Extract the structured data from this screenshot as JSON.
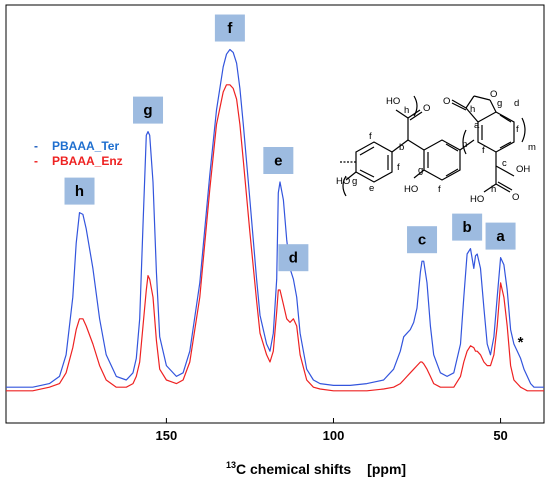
{
  "chart_data": {
    "type": "line",
    "xlabel_sup": "13",
    "xlabel_main": "C chemical shifts",
    "xlabel_unit": "[ppm]",
    "x_reversed": true,
    "xlim": [
      198,
      37
    ],
    "ylim": [
      0,
      1
    ],
    "x_ticks": [
      150,
      100,
      50
    ],
    "x_tick_labels": [
      "150",
      "100",
      "50"
    ],
    "series": [
      {
        "name": "PBAAA_Ter",
        "color": "#3355dd",
        "x": [
          198,
          190,
          185,
          182,
          180,
          178,
          177,
          176,
          175,
          174,
          172,
          170,
          168,
          165,
          162,
          160,
          159,
          158,
          157,
          156,
          155.5,
          155,
          154,
          153,
          152,
          150,
          147,
          145,
          143,
          140,
          137,
          135,
          133,
          132,
          131,
          130,
          129,
          128,
          127,
          125,
          123,
          122,
          120,
          119,
          118,
          117,
          116.5,
          116,
          115,
          114,
          113,
          112,
          111,
          110,
          108,
          106,
          104,
          100,
          95,
          90,
          85,
          82,
          80,
          79,
          78,
          77,
          76,
          75,
          74,
          73.5,
          73,
          72,
          71,
          70,
          68,
          66,
          64,
          62,
          61,
          60,
          59,
          58,
          57.5,
          57,
          56,
          55,
          54,
          53,
          52,
          51,
          50,
          49,
          48,
          47,
          46,
          45,
          44,
          43,
          42,
          41,
          40,
          38,
          37
        ],
        "y": [
          0.03,
          0.03,
          0.04,
          0.06,
          0.12,
          0.28,
          0.43,
          0.515,
          0.51,
          0.47,
          0.36,
          0.22,
          0.12,
          0.06,
          0.05,
          0.07,
          0.11,
          0.22,
          0.48,
          0.73,
          0.74,
          0.73,
          0.6,
          0.35,
          0.17,
          0.09,
          0.06,
          0.07,
          0.13,
          0.32,
          0.62,
          0.8,
          0.92,
          0.955,
          0.968,
          0.96,
          0.93,
          0.86,
          0.76,
          0.55,
          0.33,
          0.23,
          0.15,
          0.13,
          0.18,
          0.33,
          0.57,
          0.6,
          0.55,
          0.44,
          0.36,
          0.33,
          0.28,
          0.18,
          0.08,
          0.05,
          0.04,
          0.035,
          0.035,
          0.04,
          0.05,
          0.08,
          0.13,
          0.17,
          0.18,
          0.19,
          0.21,
          0.25,
          0.35,
          0.38,
          0.38,
          0.32,
          0.2,
          0.12,
          0.07,
          0.06,
          0.07,
          0.15,
          0.28,
          0.4,
          0.415,
          0.36,
          0.395,
          0.4,
          0.36,
          0.25,
          0.15,
          0.12,
          0.17,
          0.28,
          0.39,
          0.37,
          0.3,
          0.19,
          0.15,
          0.13,
          0.11,
          0.08,
          0.06,
          0.04,
          0.03,
          0.03,
          0.03
        ],
        "name_visible": true
      },
      {
        "name": "PBAAA_Enz",
        "color": "#ee2222",
        "x": [
          198,
          190,
          185,
          182,
          180,
          178,
          177,
          176,
          175,
          174,
          172,
          170,
          168,
          165,
          162,
          160,
          159,
          158,
          157,
          156,
          155.5,
          155,
          154,
          153,
          152,
          150,
          147,
          145,
          143,
          140,
          137,
          135,
          133,
          132,
          131,
          130,
          129,
          128,
          127,
          125,
          123,
          122,
          120,
          119,
          118,
          117,
          116.5,
          116,
          115,
          114,
          113,
          112,
          111,
          110,
          108,
          106,
          104,
          100,
          95,
          90,
          85,
          82,
          80,
          79,
          78,
          77,
          76,
          75,
          74,
          73.5,
          73,
          72,
          71,
          70,
          68,
          66,
          64,
          62,
          61,
          60,
          59,
          58,
          57.5,
          57,
          56,
          55,
          54,
          53,
          52,
          51,
          50,
          49,
          48,
          47,
          46,
          45,
          44,
          43,
          42,
          41,
          40,
          38,
          37
        ],
        "y": [
          0.02,
          0.02,
          0.03,
          0.04,
          0.07,
          0.14,
          0.19,
          0.22,
          0.22,
          0.2,
          0.15,
          0.09,
          0.05,
          0.03,
          0.03,
          0.04,
          0.06,
          0.1,
          0.2,
          0.3,
          0.34,
          0.33,
          0.28,
          0.16,
          0.08,
          0.05,
          0.04,
          0.05,
          0.1,
          0.28,
          0.58,
          0.76,
          0.85,
          0.87,
          0.87,
          0.86,
          0.83,
          0.76,
          0.66,
          0.46,
          0.27,
          0.18,
          0.12,
          0.1,
          0.13,
          0.24,
          0.3,
          0.3,
          0.26,
          0.22,
          0.21,
          0.22,
          0.2,
          0.12,
          0.05,
          0.03,
          0.025,
          0.02,
          0.02,
          0.02,
          0.025,
          0.03,
          0.04,
          0.05,
          0.06,
          0.07,
          0.08,
          0.09,
          0.1,
          0.1,
          0.095,
          0.08,
          0.06,
          0.04,
          0.03,
          0.03,
          0.03,
          0.06,
          0.1,
          0.13,
          0.145,
          0.14,
          0.13,
          0.13,
          0.12,
          0.1,
          0.09,
          0.09,
          0.12,
          0.2,
          0.32,
          0.28,
          0.2,
          0.09,
          0.05,
          0.04,
          0.03,
          0.025,
          0.02,
          0.02,
          0.02,
          0.02,
          0.02
        ],
        "name_visible": true
      }
    ],
    "peak_labels": [
      {
        "label": "h",
        "x": 176,
        "y": 0.515
      },
      {
        "label": "g",
        "x": 155.5,
        "y": 0.74
      },
      {
        "label": "f",
        "x": 131,
        "y": 0.968
      },
      {
        "label": "e",
        "x": 116.5,
        "y": 0.6
      },
      {
        "label": "d",
        "x": 112,
        "y": 0.33
      },
      {
        "label": "c",
        "x": 73.5,
        "y": 0.38
      },
      {
        "label": "b",
        "x": 60,
        "y": 0.415
      },
      {
        "label": "a",
        "x": 50,
        "y": 0.39
      }
    ],
    "annotations": [
      {
        "text": "*",
        "x": 44,
        "y": 0.13
      }
    ],
    "structure_labels": {
      "atoms": [
        "HO",
        "h",
        "O",
        "b",
        "f",
        "f",
        "HO",
        "g",
        "e",
        "f",
        "HO",
        "g",
        "f",
        "O",
        "O",
        "h",
        "a",
        "g",
        "d",
        "f",
        "f",
        "c",
        "OH",
        "h",
        "HO",
        "O",
        "n",
        "m",
        "n"
      ]
    }
  }
}
